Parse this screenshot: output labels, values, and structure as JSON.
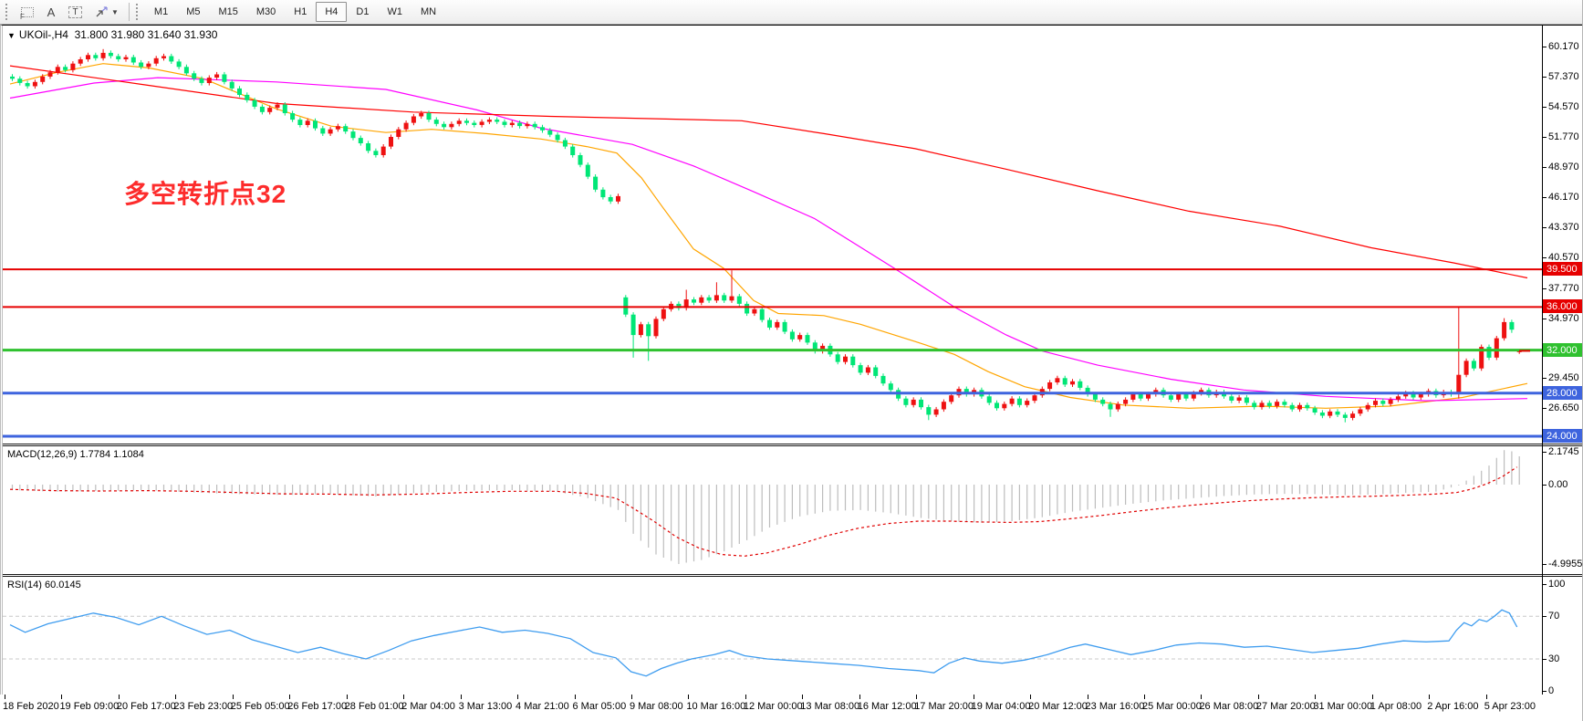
{
  "toolbar": {
    "tools": [
      {
        "name": "freehand-grid-tool",
        "label": "F"
      },
      {
        "name": "text-tool",
        "label": "A"
      },
      {
        "name": "text-label-tool",
        "label": "T"
      },
      {
        "name": "arrow-objects-tool",
        "label": ""
      }
    ],
    "timeframes": [
      "M1",
      "M5",
      "M15",
      "M30",
      "H1",
      "H4",
      "D1",
      "W1",
      "MN"
    ],
    "selected_timeframe": "H4"
  },
  "chart_header": {
    "title": "UKOil-,H4  31.800 31.980 31.640 31.930",
    "symbol": "UKOil-",
    "period": "H4"
  },
  "annotation": {
    "text": "多空转折点32",
    "color": "#fd2c2c"
  },
  "chart_data": [
    {
      "type": "candlestick",
      "symbol": "UKOil-",
      "timeframe": "H4",
      "current_bar": {
        "open": 31.8,
        "high": 31.98,
        "low": 31.64,
        "close": 31.93
      },
      "up_color": "#ee1111",
      "down_color": "#00e676",
      "y_ticks": [
        "60.170",
        "57.370",
        "54.570",
        "51.770",
        "48.970",
        "46.170",
        "43.370",
        "40.570",
        "37.770",
        "34.970",
        "29.450",
        "26.650"
      ],
      "x_labels": [
        "18 Feb 2020",
        "19 Feb 09:00",
        "20 Feb 17:00",
        "23 Feb 23:00",
        "25 Feb 05:00",
        "26 Feb 17:00",
        "28 Feb 01:00",
        "2 Mar 04:00",
        "3 Mar 13:00",
        "4 Mar 21:00",
        "6 Mar 05:00",
        "9 Mar 08:00",
        "10 Mar 16:00",
        "12 Mar 00:00",
        "13 Mar 08:00",
        "16 Mar 12:00",
        "17 Mar 20:00",
        "19 Mar 04:00",
        "20 Mar 12:00",
        "23 Mar 16:00",
        "25 Mar 00:00",
        "26 Mar 08:00",
        "27 Mar 20:00",
        "31 Mar 00:00",
        "1 Apr 08:00",
        "2 Apr 16:00",
        "5 Apr 23:00"
      ],
      "closes": [
        57.2,
        56.8,
        56.5,
        56.9,
        57.4,
        57.8,
        58.3,
        58.0,
        58.6,
        59.0,
        59.4,
        59.1,
        59.6,
        59.3,
        59.0,
        59.2,
        58.7,
        58.3,
        58.6,
        59.1,
        59.3,
        58.8,
        58.3,
        57.7,
        57.2,
        56.8,
        57.3,
        57.6,
        56.9,
        56.3,
        55.7,
        55.2,
        54.6,
        54.1,
        54.5,
        54.8,
        54.0,
        53.4,
        52.9,
        53.3,
        52.6,
        52.1,
        52.5,
        52.8,
        52.3,
        51.7,
        51.2,
        50.5,
        50.1,
        50.9,
        51.8,
        52.5,
        53.1,
        53.7,
        54.0,
        53.4,
        53.0,
        52.7,
        53.0,
        53.3,
        53.1,
        52.9,
        53.2,
        53.4,
        53.2,
        52.9,
        53.1,
        52.8,
        53.0,
        52.7,
        52.4,
        52.0,
        51.5,
        50.9,
        50.1,
        49.2,
        48.1,
        46.9,
        46.2,
        45.8,
        46.3,
        35.3,
        33.4,
        34.4,
        33.3,
        34.9,
        35.8,
        36.3,
        35.9,
        36.7,
        36.4,
        36.9,
        36.6,
        37.1,
        36.6,
        37.0,
        36.3,
        35.4,
        35.8,
        34.8,
        34.1,
        34.6,
        33.7,
        33.0,
        33.4,
        32.7,
        31.9,
        32.4,
        31.6,
        30.9,
        31.4,
        30.6,
        29.9,
        30.4,
        29.6,
        28.9,
        28.3,
        27.5,
        26.9,
        27.4,
        26.7,
        26.0,
        26.5,
        27.2,
        27.8,
        28.4,
        27.9,
        28.3,
        27.7,
        27.1,
        26.6,
        27.0,
        27.5,
        26.9,
        27.3,
        27.8,
        28.4,
        29.0,
        29.4,
        28.8,
        29.1,
        28.5,
        27.9,
        27.4,
        27.0,
        26.5,
        27.0,
        27.4,
        27.9,
        27.5,
        27.9,
        28.3,
        27.8,
        27.4,
        27.9,
        27.5,
        28.0,
        28.3,
        27.8,
        28.1,
        27.7,
        27.3,
        27.6,
        27.1,
        26.7,
        27.1,
        26.8,
        27.2,
        26.9,
        26.5,
        26.9,
        26.6,
        26.2,
        25.9,
        26.3,
        26.0,
        25.7,
        26.1,
        26.5,
        26.9,
        27.3,
        27.0,
        27.4,
        27.7,
        28.0,
        27.6,
        27.9,
        28.2,
        27.8,
        28.1,
        27.9,
        29.7,
        31.0,
        30.3,
        32.3,
        31.3,
        33.1,
        34.6,
        33.9,
        31.93
      ],
      "specials": {
        "12": {
          "h": 59.95
        },
        "81": {
          "o": 36.9
        },
        "82": {
          "l": 31.3
        },
        "84": {
          "l": 31.0
        },
        "89": {
          "h": 37.6
        },
        "93": {
          "h": 38.3
        },
        "95": {
          "h": 39.4
        },
        "121": {
          "l": 25.5
        },
        "145": {
          "l": 25.8
        },
        "176": {
          "l": 25.3
        },
        "191": {
          "o": 27.9,
          "h": 36.0,
          "l": 27.5
        },
        "197": {
          "h": 34.97
        },
        "198": {
          "l": 33.6
        },
        "199": {
          "o": 31.8,
          "h": 31.98,
          "l": 31.64
        }
      },
      "hlines": [
        {
          "price": 39.5,
          "label": "39.500",
          "color": "#e60000",
          "width": 2
        },
        {
          "price": 36.0,
          "label": "36.000",
          "color": "#e60000",
          "width": 2
        },
        {
          "price": 32.0,
          "label": "32.000",
          "color": "#2fc12f",
          "width": 3
        },
        {
          "price": 28.0,
          "label": "28.000",
          "color": "#3e64de",
          "width": 3
        },
        {
          "price": 24.0,
          "label": "24.000",
          "color": "#3e64de",
          "width": 3
        }
      ],
      "last_price": 31.93,
      "ma_lines": [
        {
          "name": "ma-fast-orange",
          "color": "#ffa500",
          "points": [
            [
              8,
              56.7
            ],
            [
              60,
              57.8
            ],
            [
              110,
              58.6
            ],
            [
              160,
              58.2
            ],
            [
              220,
              57.2
            ],
            [
              300,
              54.4
            ],
            [
              360,
              52.8
            ],
            [
              420,
              52.2
            ],
            [
              470,
              52.5
            ],
            [
              530,
              52.1
            ],
            [
              590,
              51.6
            ],
            [
              640,
              50.9
            ],
            [
              673,
              50.3
            ],
            [
              700,
              48.0
            ],
            [
              723,
              45.3
            ],
            [
              757,
              41.4
            ],
            [
              790,
              39.6
            ],
            [
              823,
              36.6
            ],
            [
              850,
              35.4
            ],
            [
              900,
              35.2
            ],
            [
              940,
              34.4
            ],
            [
              1000,
              32.8
            ],
            [
              1043,
              31.6
            ],
            [
              1080,
              30.0
            ],
            [
              1120,
              28.6
            ],
            [
              1170,
              27.6
            ],
            [
              1228,
              26.9
            ],
            [
              1300,
              26.6
            ],
            [
              1380,
              26.8
            ],
            [
              1450,
              26.6
            ],
            [
              1520,
              26.8
            ],
            [
              1600,
              27.6
            ],
            [
              1671,
              28.9
            ]
          ]
        },
        {
          "name": "ma-mid-magenta",
          "color": "#ff00ff",
          "points": [
            [
              8,
              55.4
            ],
            [
              100,
              56.8
            ],
            [
              170,
              57.3
            ],
            [
              300,
              56.9
            ],
            [
              420,
              56.2
            ],
            [
              520,
              54.3
            ],
            [
              590,
              52.6
            ],
            [
              690,
              51.1
            ],
            [
              757,
              49.1
            ],
            [
              823,
              46.7
            ],
            [
              890,
              44.2
            ],
            [
              977,
              39.6
            ],
            [
              1043,
              36.0
            ],
            [
              1100,
              33.4
            ],
            [
              1140,
              31.9
            ],
            [
              1200,
              30.6
            ],
            [
              1280,
              29.3
            ],
            [
              1360,
              28.3
            ],
            [
              1450,
              27.7
            ],
            [
              1560,
              27.3
            ],
            [
              1671,
              27.5
            ]
          ]
        },
        {
          "name": "ma-slow-red",
          "color": "#ff0000",
          "points": [
            [
              8,
              58.4
            ],
            [
              150,
              56.7
            ],
            [
              300,
              54.9
            ],
            [
              450,
              54.1
            ],
            [
              600,
              53.7
            ],
            [
              810,
              53.3
            ],
            [
              900,
              52.1
            ],
            [
              1000,
              50.7
            ],
            [
              1100,
              48.8
            ],
            [
              1200,
              46.8
            ],
            [
              1300,
              44.9
            ],
            [
              1400,
              43.5
            ],
            [
              1500,
              41.5
            ],
            [
              1590,
              40.1
            ],
            [
              1671,
              38.7
            ]
          ]
        }
      ]
    },
    {
      "type": "macd",
      "label": "MACD(12,26,9) 1.7784 1.1084",
      "main_value": "1.7784",
      "signal_value": "1.1084",
      "y_ticks": [
        "2.1745",
        "0.00",
        "-4.9955"
      ],
      "y_tick_values": [
        2.1745,
        0.0,
        -4.9955
      ],
      "hist_color": "#bdbdbd",
      "signal_color": "#e00000",
      "anchors": [
        [
          0,
          -0.35,
          -0.3
        ],
        [
          6,
          -0.45,
          -0.38
        ],
        [
          12,
          -0.4,
          -0.4
        ],
        [
          18,
          -0.35,
          -0.38
        ],
        [
          24,
          -0.5,
          -0.42
        ],
        [
          30,
          -0.6,
          -0.5
        ],
        [
          36,
          -0.65,
          -0.58
        ],
        [
          42,
          -0.6,
          -0.6
        ],
        [
          48,
          -0.75,
          -0.65
        ],
        [
          54,
          -0.5,
          -0.6
        ],
        [
          60,
          -0.38,
          -0.5
        ],
        [
          66,
          -0.35,
          -0.42
        ],
        [
          72,
          -0.45,
          -0.42
        ],
        [
          76,
          -0.85,
          -0.55
        ],
        [
          80,
          -1.6,
          -0.85
        ],
        [
          82,
          -3.1,
          -1.4
        ],
        [
          85,
          -4.4,
          -2.3
        ],
        [
          88,
          -5.0,
          -3.3
        ],
        [
          91,
          -4.75,
          -4.0
        ],
        [
          94,
          -4.2,
          -4.4
        ],
        [
          97,
          -3.5,
          -4.5
        ],
        [
          100,
          -2.7,
          -4.3
        ],
        [
          104,
          -2.0,
          -3.8
        ],
        [
          108,
          -1.65,
          -3.2
        ],
        [
          112,
          -1.6,
          -2.75
        ],
        [
          116,
          -1.8,
          -2.45
        ],
        [
          120,
          -2.1,
          -2.3
        ],
        [
          124,
          -2.3,
          -2.3
        ],
        [
          128,
          -2.4,
          -2.35
        ],
        [
          132,
          -2.3,
          -2.38
        ],
        [
          136,
          -2.05,
          -2.33
        ],
        [
          140,
          -1.7,
          -2.15
        ],
        [
          144,
          -1.45,
          -1.95
        ],
        [
          148,
          -1.2,
          -1.72
        ],
        [
          152,
          -1.0,
          -1.5
        ],
        [
          156,
          -0.85,
          -1.3
        ],
        [
          160,
          -0.72,
          -1.14
        ],
        [
          164,
          -0.62,
          -1.0
        ],
        [
          168,
          -0.58,
          -0.9
        ],
        [
          172,
          -0.6,
          -0.82
        ],
        [
          176,
          -0.66,
          -0.77
        ],
        [
          180,
          -0.62,
          -0.73
        ],
        [
          184,
          -0.52,
          -0.67
        ],
        [
          188,
          -0.44,
          -0.6
        ],
        [
          191,
          -0.05,
          -0.5
        ],
        [
          193,
          0.55,
          -0.28
        ],
        [
          195,
          1.2,
          0.05
        ],
        [
          197,
          2.17,
          0.48
        ],
        [
          198,
          2.1,
          0.8
        ],
        [
          199,
          1.78,
          1.11
        ]
      ]
    },
    {
      "type": "rsi",
      "label": "RSI(14) 60.0145",
      "value": "60.0145",
      "y_ticks": [
        "100",
        "70",
        "30",
        "0"
      ],
      "y_tick_values": [
        100,
        70,
        30,
        0
      ],
      "levels": [
        70,
        30
      ],
      "color": "#3e9cef",
      "anchors": [
        [
          0,
          62
        ],
        [
          2,
          55
        ],
        [
          5,
          63
        ],
        [
          8,
          68
        ],
        [
          11,
          73
        ],
        [
          14,
          69
        ],
        [
          17,
          62
        ],
        [
          20,
          70
        ],
        [
          23,
          61
        ],
        [
          26,
          53
        ],
        [
          29,
          57
        ],
        [
          32,
          48
        ],
        [
          35,
          42
        ],
        [
          38,
          36
        ],
        [
          41,
          41
        ],
        [
          44,
          35
        ],
        [
          47,
          30
        ],
        [
          50,
          38
        ],
        [
          53,
          47
        ],
        [
          56,
          52
        ],
        [
          59,
          56
        ],
        [
          62,
          60
        ],
        [
          65,
          55
        ],
        [
          68,
          57
        ],
        [
          71,
          54
        ],
        [
          74,
          49
        ],
        [
          77,
          36
        ],
        [
          80,
          31
        ],
        [
          82,
          18
        ],
        [
          84,
          14
        ],
        [
          86,
          21
        ],
        [
          88,
          26
        ],
        [
          90,
          30
        ],
        [
          93,
          34
        ],
        [
          95,
          38
        ],
        [
          97,
          33
        ],
        [
          100,
          30
        ],
        [
          104,
          28
        ],
        [
          108,
          26
        ],
        [
          112,
          24
        ],
        [
          116,
          21
        ],
        [
          120,
          19
        ],
        [
          122,
          17
        ],
        [
          124,
          26
        ],
        [
          126,
          31
        ],
        [
          128,
          28
        ],
        [
          131,
          26
        ],
        [
          134,
          29
        ],
        [
          137,
          34
        ],
        [
          140,
          41
        ],
        [
          142,
          44
        ],
        [
          145,
          39
        ],
        [
          148,
          34
        ],
        [
          151,
          38
        ],
        [
          154,
          43
        ],
        [
          157,
          45
        ],
        [
          160,
          44
        ],
        [
          163,
          41
        ],
        [
          166,
          42
        ],
        [
          169,
          39
        ],
        [
          172,
          36
        ],
        [
          175,
          38
        ],
        [
          178,
          40
        ],
        [
          181,
          44
        ],
        [
          184,
          47
        ],
        [
          187,
          46
        ],
        [
          190,
          47
        ],
        [
          191,
          57
        ],
        [
          192,
          64
        ],
        [
          193,
          61
        ],
        [
          194,
          67
        ],
        [
          195,
          65
        ],
        [
          196,
          70
        ],
        [
          197,
          76
        ],
        [
          198,
          73
        ],
        [
          199,
          60
        ]
      ]
    }
  ]
}
